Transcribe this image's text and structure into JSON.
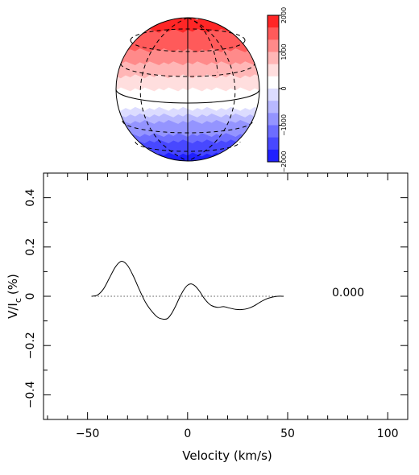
{
  "figure": {
    "phase_label": "0.000"
  },
  "colorbar": {
    "ticks": [
      2000,
      1000,
      0,
      -1000,
      -2000
    ],
    "tick_labels": [
      "2000",
      "1000",
      "0",
      "−1000",
      "−2000"
    ],
    "range": [
      -2000,
      2000
    ],
    "colors": [
      "#ff2626",
      "#ff5a5a",
      "#ff8a8a",
      "#ffb6b6",
      "#ffdede",
      "#ffffff",
      "#dcdcff",
      "#b8b8ff",
      "#9494ff",
      "#6d6dff",
      "#4848ff",
      "#2020ff"
    ]
  },
  "chart_data": {
    "type": "line",
    "xlabel": "Velocity (km/s)",
    "ylabel_main": "V/I",
    "ylabel_sub": "c",
    "ylabel_unit": "(%)",
    "xlim": [
      -72,
      110
    ],
    "ylim": [
      -0.5,
      0.5
    ],
    "xticks": [
      -50,
      0,
      50,
      100
    ],
    "xtick_labels": [
      "−50",
      "0",
      "50",
      "100"
    ],
    "yticks": [
      -0.4,
      -0.2,
      0,
      0.2,
      0.4
    ],
    "ytick_labels": [
      "−0.4",
      "−0.2",
      "0",
      "0.2",
      "0.4"
    ],
    "zero_line": {
      "x": [
        -48,
        48
      ],
      "y": 0,
      "style": "dotted"
    },
    "series": [
      {
        "x": [
          -48,
          -45,
          -42,
          -39,
          -36,
          -33,
          -30,
          -27,
          -24,
          -21,
          -18,
          -15,
          -12,
          -10,
          -8,
          -6,
          -4,
          -2,
          0,
          2,
          4,
          6,
          8,
          10,
          12,
          15,
          18,
          21,
          24,
          27,
          30,
          33,
          36,
          39,
          42,
          45,
          48
        ],
        "y": [
          0.0,
          0.005,
          0.03,
          0.075,
          0.12,
          0.142,
          0.125,
          0.08,
          0.025,
          -0.025,
          -0.06,
          -0.085,
          -0.093,
          -0.09,
          -0.07,
          -0.04,
          -0.005,
          0.025,
          0.045,
          0.05,
          0.04,
          0.02,
          -0.005,
          -0.025,
          -0.038,
          -0.045,
          -0.042,
          -0.048,
          -0.053,
          -0.054,
          -0.05,
          -0.04,
          -0.025,
          -0.012,
          -0.004,
          0.0,
          0.0
        ]
      }
    ]
  }
}
